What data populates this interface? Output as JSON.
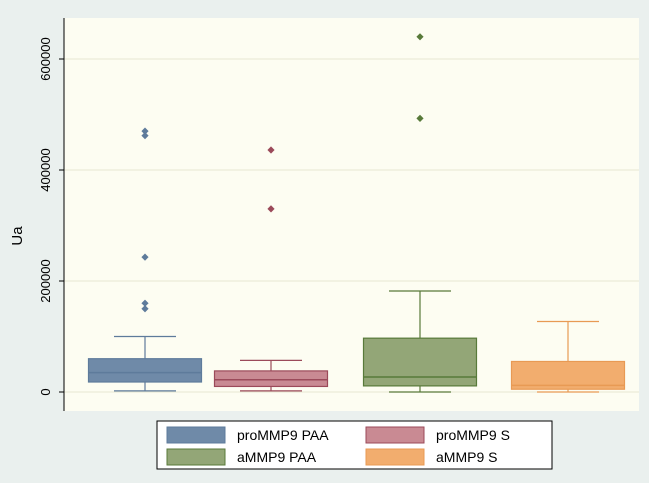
{
  "chart_data": {
    "type": "boxplot",
    "ylabel": "Ua",
    "yticks": [
      0,
      200000,
      400000,
      600000
    ],
    "ytick_labels": [
      "0",
      "200000",
      "400000",
      "600000"
    ],
    "ylim": [
      -25000,
      665000
    ],
    "grid": true,
    "legend_position": "bottom",
    "series": [
      {
        "name": "proMMP9 PAA",
        "color": "#5e7b9b",
        "fill": "#6f8aa8",
        "whisker_low": 2000,
        "q1": 18000,
        "median": 35000,
        "q3": 60000,
        "whisker_high": 100000,
        "outliers": [
          150000,
          160000,
          243000,
          462000,
          470000
        ]
      },
      {
        "name": "proMMP9 S",
        "color": "#9b4a5a",
        "fill": "#c98a93",
        "whisker_low": 2000,
        "q1": 10000,
        "median": 22000,
        "q3": 38000,
        "whisker_high": 57000,
        "outliers": [
          330000,
          436000
        ]
      },
      {
        "name": "aMMP9 PAA",
        "color": "#587a3a",
        "fill": "#93a677",
        "whisker_low": 0,
        "q1": 11000,
        "median": 27000,
        "q3": 97000,
        "whisker_high": 182000,
        "outliers": [
          493000,
          640000
        ]
      },
      {
        "name": "aMMP9 S",
        "color": "#e89a54",
        "fill": "#f2ad6e",
        "whisker_low": 0,
        "q1": 5000,
        "median": 12000,
        "q3": 55000,
        "whisker_high": 127000,
        "outliers": []
      }
    ]
  }
}
